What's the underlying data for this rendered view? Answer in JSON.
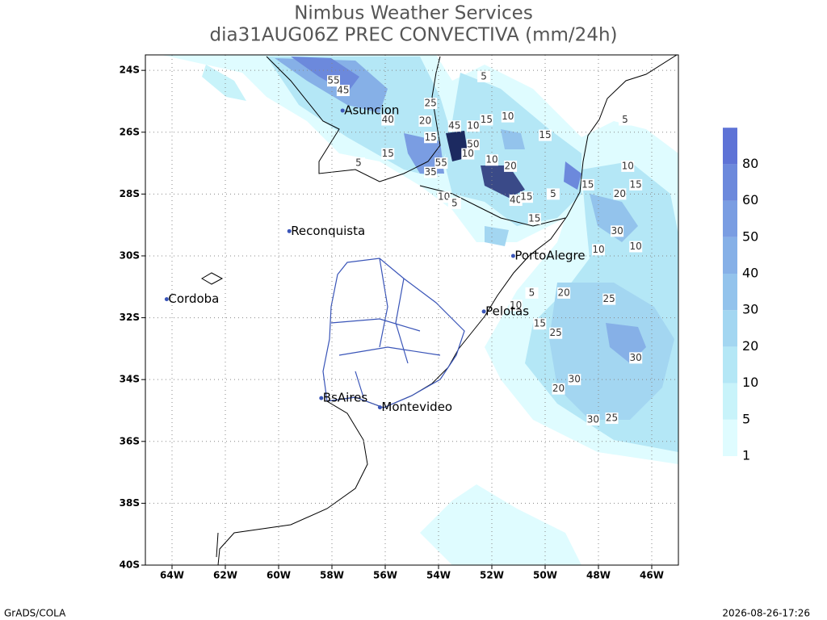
{
  "header": {
    "title": "Nimbus Weather Services",
    "subtitle": "dia31AUG06Z PREC CONVECTIVA (mm/24h)"
  },
  "map": {
    "lon_range": [
      -65,
      -45
    ],
    "lat_range": [
      -40,
      -23.5
    ],
    "lon_ticks": [
      {
        "value": -64,
        "label": "64W"
      },
      {
        "value": -62,
        "label": "62W"
      },
      {
        "value": -60,
        "label": "60W"
      },
      {
        "value": -58,
        "label": "58W"
      },
      {
        "value": -56,
        "label": "56W"
      },
      {
        "value": -54,
        "label": "54W"
      },
      {
        "value": -52,
        "label": "52W"
      },
      {
        "value": -50,
        "label": "50W"
      },
      {
        "value": -48,
        "label": "48W"
      },
      {
        "value": -46,
        "label": "46W"
      }
    ],
    "lat_ticks": [
      {
        "value": -24,
        "label": "24S"
      },
      {
        "value": -26,
        "label": "26S"
      },
      {
        "value": -28,
        "label": "28S"
      },
      {
        "value": -30,
        "label": "30S"
      },
      {
        "value": -32,
        "label": "32S"
      },
      {
        "value": -34,
        "label": "34S"
      },
      {
        "value": -36,
        "label": "36S"
      },
      {
        "value": -38,
        "label": "38S"
      },
      {
        "value": -40,
        "label": "40S"
      }
    ],
    "cities": [
      {
        "name": "Asuncion",
        "lon": -57.6,
        "lat": -25.3
      },
      {
        "name": "Reconquista",
        "lon": -59.6,
        "lat": -29.2
      },
      {
        "name": "Cordoba",
        "lon": -64.2,
        "lat": -31.4
      },
      {
        "name": "PortoAlegre",
        "lon": -51.2,
        "lat": -30.0
      },
      {
        "name": "Pelotas",
        "lon": -52.3,
        "lat": -31.8
      },
      {
        "name": "BsAires",
        "lon": -58.4,
        "lat": -34.6
      },
      {
        "name": "Montevideo",
        "lon": -56.2,
        "lat": -34.9
      }
    ],
    "contour_labels": [
      {
        "value": 55,
        "lon": -57.94,
        "lat": -24.34
      },
      {
        "value": 45,
        "lon": -57.58,
        "lat": -24.65
      },
      {
        "value": 25,
        "lon": -54.3,
        "lat": -25.07
      },
      {
        "value": 40,
        "lon": -55.9,
        "lat": -25.6
      },
      {
        "value": 20,
        "lon": -54.5,
        "lat": -25.64
      },
      {
        "value": 15,
        "lon": -54.3,
        "lat": -26.17
      },
      {
        "value": 45,
        "lon": -53.4,
        "lat": -25.8
      },
      {
        "value": 10,
        "lon": -52.7,
        "lat": -25.8
      },
      {
        "value": 15,
        "lon": -52.2,
        "lat": -25.6
      },
      {
        "value": 10,
        "lon": -51.4,
        "lat": -25.5
      },
      {
        "value": 5,
        "lon": -52.3,
        "lat": -24.2
      },
      {
        "value": 15,
        "lon": -50.0,
        "lat": -26.1
      },
      {
        "value": 5,
        "lon": -47.0,
        "lat": -25.6
      },
      {
        "value": 50,
        "lon": -52.7,
        "lat": -26.4
      },
      {
        "value": 10,
        "lon": -52.9,
        "lat": -26.7
      },
      {
        "value": 15,
        "lon": -55.9,
        "lat": -26.7
      },
      {
        "value": 5,
        "lon": -57.0,
        "lat": -27.0
      },
      {
        "value": 55,
        "lon": -53.9,
        "lat": -27.0
      },
      {
        "value": 35,
        "lon": -54.3,
        "lat": -27.3
      },
      {
        "value": 10,
        "lon": -52.0,
        "lat": -26.9
      },
      {
        "value": 20,
        "lon": -51.3,
        "lat": -27.1
      },
      {
        "value": 10,
        "lon": -46.9,
        "lat": -27.1
      },
      {
        "value": 15,
        "lon": -48.4,
        "lat": -27.7
      },
      {
        "value": 15,
        "lon": -46.6,
        "lat": -27.7
      },
      {
        "value": 20,
        "lon": -47.2,
        "lat": -28.0
      },
      {
        "value": 10,
        "lon": -53.8,
        "lat": -28.1
      },
      {
        "value": 5,
        "lon": -53.4,
        "lat": -28.3
      },
      {
        "value": 40,
        "lon": -51.1,
        "lat": -28.2
      },
      {
        "value": 15,
        "lon": -50.7,
        "lat": -28.1
      },
      {
        "value": 5,
        "lon": -49.7,
        "lat": -28.0
      },
      {
        "value": 15,
        "lon": -50.4,
        "lat": -28.8
      },
      {
        "value": 30,
        "lon": -47.3,
        "lat": -29.2
      },
      {
        "value": 10,
        "lon": -46.6,
        "lat": -29.7
      },
      {
        "value": 10,
        "lon": -48.0,
        "lat": -29.8
      },
      {
        "value": 5,
        "lon": -50.5,
        "lat": -31.2
      },
      {
        "value": 10,
        "lon": -51.1,
        "lat": -31.6
      },
      {
        "value": 20,
        "lon": -49.3,
        "lat": -31.2
      },
      {
        "value": 25,
        "lon": -47.6,
        "lat": -31.4
      },
      {
        "value": 15,
        "lon": -50.2,
        "lat": -32.2
      },
      {
        "value": 25,
        "lon": -49.6,
        "lat": -32.5
      },
      {
        "value": 30,
        "lon": -46.6,
        "lat": -33.3
      },
      {
        "value": 30,
        "lon": -48.9,
        "lat": -34.0
      },
      {
        "value": 20,
        "lon": -49.5,
        "lat": -34.3
      },
      {
        "value": 30,
        "lon": -48.2,
        "lat": -35.3
      },
      {
        "value": 25,
        "lon": -47.5,
        "lat": -35.25
      }
    ]
  },
  "colorbar": {
    "levels": [
      1,
      5,
      10,
      20,
      30,
      40,
      50,
      60,
      80
    ],
    "colors": [
      "#dffcff",
      "#c8f3fa",
      "#b4e7f6",
      "#a3d6f1",
      "#93c3ec",
      "#86b0e7",
      "#7a9de2",
      "#6c89dc",
      "#5e73d6"
    ]
  },
  "footer": {
    "left": "GrADS/COLA",
    "right": "2026-08-26-17:26"
  }
}
